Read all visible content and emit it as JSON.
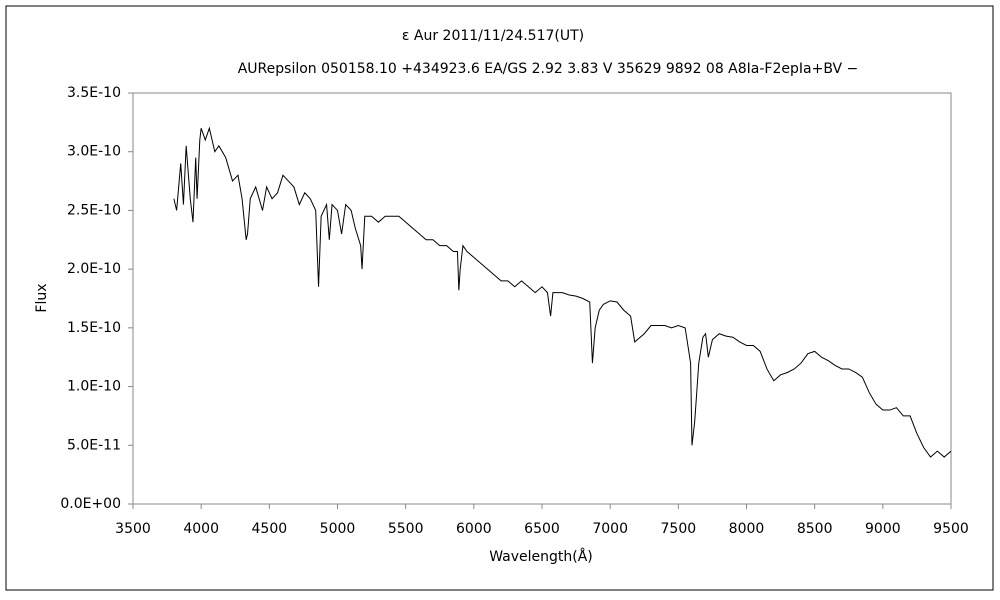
{
  "chart_data": {
    "type": "line",
    "title": "ε  Aur   2011/11/24.517(UT)",
    "subtitle": "AURepsilon 050158.10 +434923.6 EA/GS 2.92 3.83 V 35629 9892 08 A8Ia-F2epIa+BV −",
    "x_label": "Wavelength(Å)",
    "y_label": "Flux",
    "xlim": [
      3500,
      9500
    ],
    "xticks": [
      3500,
      4000,
      4500,
      5000,
      5500,
      6000,
      6500,
      7000,
      7500,
      8000,
      8500,
      9000,
      9500
    ],
    "ylim": [
      0,
      3.5e-10
    ],
    "yticks": [
      {
        "value": 0,
        "label": "0.0E+00"
      },
      {
        "value": 5e-11,
        "label": "5.0E-11"
      },
      {
        "value": 1e-10,
        "label": "1.0E-10"
      },
      {
        "value": 1.5e-10,
        "label": "1.5E-10"
      },
      {
        "value": 2e-10,
        "label": "2.0E-10"
      },
      {
        "value": 2.5e-10,
        "label": "2.5E-10"
      },
      {
        "value": 3e-10,
        "label": "3.0E-10"
      },
      {
        "value": 3.5e-10,
        "label": "3.5E-10"
      }
    ],
    "grid": false,
    "color": "#000000",
    "x": [
      3800,
      3820,
      3850,
      3870,
      3890,
      3920,
      3940,
      3960,
      3970,
      3990,
      4000,
      4030,
      4060,
      4100,
      4130,
      4180,
      4230,
      4270,
      4300,
      4330,
      4340,
      4360,
      4400,
      4450,
      4480,
      4520,
      4560,
      4600,
      4640,
      4680,
      4720,
      4760,
      4800,
      4840,
      4861,
      4880,
      4920,
      4940,
      4960,
      5000,
      5030,
      5060,
      5100,
      5130,
      5170,
      5180,
      5200,
      5250,
      5300,
      5350,
      5400,
      5450,
      5500,
      5550,
      5600,
      5650,
      5700,
      5750,
      5800,
      5850,
      5880,
      5890,
      5900,
      5920,
      5950,
      6000,
      6050,
      6100,
      6150,
      6200,
      6250,
      6300,
      6350,
      6400,
      6450,
      6500,
      6540,
      6563,
      6580,
      6650,
      6700,
      6750,
      6800,
      6850,
      6870,
      6890,
      6920,
      6950,
      7000,
      7050,
      7100,
      7150,
      7180,
      7200,
      7250,
      7300,
      7350,
      7400,
      7450,
      7500,
      7550,
      7590,
      7600,
      7620,
      7650,
      7680,
      7700,
      7720,
      7750,
      7800,
      7850,
      7900,
      7950,
      8000,
      8050,
      8100,
      8150,
      8200,
      8250,
      8300,
      8350,
      8400,
      8450,
      8500,
      8550,
      8600,
      8650,
      8700,
      8750,
      8800,
      8850,
      8900,
      8950,
      9000,
      9050,
      9100,
      9150,
      9200,
      9250,
      9300,
      9350,
      9400,
      9450,
      9500
    ],
    "values": [
      2.6e-10,
      2.5e-10,
      2.9e-10,
      2.55e-10,
      3.05e-10,
      2.6e-10,
      2.4e-10,
      2.95e-10,
      2.6e-10,
      3.1e-10,
      3.2e-10,
      3.1e-10,
      3.2e-10,
      3e-10,
      3.05e-10,
      2.95e-10,
      2.75e-10,
      2.8e-10,
      2.6e-10,
      2.25e-10,
      2.3e-10,
      2.6e-10,
      2.7e-10,
      2.5e-10,
      2.7e-10,
      2.6e-10,
      2.65e-10,
      2.8e-10,
      2.75e-10,
      2.7e-10,
      2.55e-10,
      2.65e-10,
      2.6e-10,
      2.5e-10,
      1.85e-10,
      2.45e-10,
      2.55e-10,
      2.25e-10,
      2.55e-10,
      2.5e-10,
      2.3e-10,
      2.55e-10,
      2.5e-10,
      2.35e-10,
      2.2e-10,
      2e-10,
      2.45e-10,
      2.45e-10,
      2.4e-10,
      2.45e-10,
      2.45e-10,
      2.45e-10,
      2.4e-10,
      2.35e-10,
      2.3e-10,
      2.25e-10,
      2.25e-10,
      2.2e-10,
      2.2e-10,
      2.15e-10,
      2.15e-10,
      1.82e-10,
      2e-10,
      2.2e-10,
      2.15e-10,
      2.1e-10,
      2.05e-10,
      2e-10,
      1.95e-10,
      1.9e-10,
      1.9e-10,
      1.85e-10,
      1.9e-10,
      1.85e-10,
      1.8e-10,
      1.85e-10,
      1.8e-10,
      1.6e-10,
      1.8e-10,
      1.8e-10,
      1.78e-10,
      1.77e-10,
      1.75e-10,
      1.72e-10,
      1.2e-10,
      1.5e-10,
      1.65e-10,
      1.7e-10,
      1.73e-10,
      1.72e-10,
      1.65e-10,
      1.6e-10,
      1.38e-10,
      1.4e-10,
      1.45e-10,
      1.52e-10,
      1.52e-10,
      1.52e-10,
      1.5e-10,
      1.52e-10,
      1.5e-10,
      1.2e-10,
      5e-11,
      7e-11,
      1.2e-10,
      1.42e-10,
      1.45e-10,
      1.25e-10,
      1.4e-10,
      1.45e-10,
      1.43e-10,
      1.42e-10,
      1.38e-10,
      1.35e-10,
      1.35e-10,
      1.3e-10,
      1.15e-10,
      1.05e-10,
      1.1e-10,
      1.12e-10,
      1.15e-10,
      1.2e-10,
      1.28e-10,
      1.3e-10,
      1.25e-10,
      1.22e-10,
      1.18e-10,
      1.15e-10,
      1.15e-10,
      1.12e-10,
      1.08e-10,
      9.5e-11,
      8.5e-11,
      8e-11,
      8e-11,
      8.2e-11,
      7.5e-11,
      7.5e-11,
      6e-11,
      4.8e-11,
      4e-11,
      4.5e-11,
      4e-11,
      4.5e-11
    ]
  }
}
